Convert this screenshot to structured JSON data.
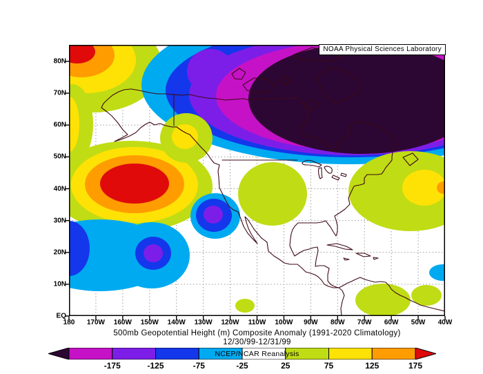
{
  "header": {
    "noaa_label": "NOAA Physical Sciences Laboratory"
  },
  "caption": {
    "title": "500mb Geopotential Height (m) Composite Anomaly (1991-2020 Climatology)",
    "dates": "12/30/99-12/31/99",
    "source": "NCEP/NCAR Reanalysis"
  },
  "axes": {
    "lat": [
      "80N",
      "70N",
      "60N",
      "50N",
      "40N",
      "30N",
      "20N",
      "10N",
      "EQ"
    ],
    "lon": [
      "180",
      "170W",
      "160W",
      "150W",
      "140W",
      "130W",
      "120W",
      "110W",
      "100W",
      "90W",
      "80W",
      "70W",
      "60W",
      "50W",
      "40W"
    ]
  },
  "colorbar": {
    "labels": [
      "-175",
      "-125",
      "-75",
      "-25",
      "25",
      "75",
      "125",
      "175"
    ],
    "left_arrow": "darkpurple",
    "right_arrow": "red",
    "segments": [
      "magenta",
      "purple",
      "blue",
      "cyan",
      "white",
      "chartreuse",
      "yellow",
      "orange"
    ]
  },
  "palette": {
    "chartreuse": "#c0dc14",
    "yellow": "#ffe205",
    "orange": "#ff9c00",
    "red": "#e00a0a",
    "cyan": "#00aaf0",
    "blue": "#1437eb",
    "purple": "#7d1ee8",
    "magenta": "#c612c6",
    "darkpurple": "#2d0733",
    "white": "#ffffff",
    "coast": "#3d0814",
    "grid": "#9a9a9a",
    "frame": "#000000"
  },
  "chart_data": {
    "type": "heatmap",
    "title": "500mb Geopotential Height (m) Composite Anomaly (1991-2020 Climatology)",
    "composite_dates": "12/30/99-12/31/99",
    "source": "NCEP/NCAR Reanalysis",
    "variable": "500mb geopotential height anomaly",
    "units": "m",
    "lat_range": [
      "EQ",
      "85N"
    ],
    "lon_range": [
      "180",
      "40W"
    ],
    "contour_interval": 50,
    "scale_breaks": [
      -175,
      -125,
      -75,
      -25,
      25,
      75,
      125,
      175
    ],
    "anomaly_centers": [
      {
        "feature": "strong positive (ridge)",
        "location": "~42N 155W, central North Pacific",
        "peak_value_m": 200
      },
      {
        "feature": "strong negative (trough)",
        "location": "~60-70N 60-100W, central/eastern Canada and Hudson Bay",
        "peak_value_m": -250
      },
      {
        "feature": "negative",
        "location": "~30N 128W, off Baja California",
        "peak_value_m": -150
      },
      {
        "feature": "negative",
        "location": "~22N 152W, subtropical central Pacific",
        "peak_value_m": -150
      },
      {
        "feature": "negative",
        "location": "~25N 178W, far western map edge",
        "peak_value_m": -100
      },
      {
        "feature": "positive",
        "location": "~82N 168W, Chukchi/Arctic corner",
        "peak_value_m": 175
      },
      {
        "feature": "positive",
        "location": "~32N 45-55W, subtropical Atlantic",
        "peak_value_m": 125
      },
      {
        "feature": "positive",
        "location": "~12N 60-75W, Caribbean / northern South America",
        "peak_value_m": 50
      },
      {
        "feature": "negative (small)",
        "location": "~15N 42W, low-latitude Atlantic edge",
        "peak_value_m": -50
      }
    ]
  }
}
